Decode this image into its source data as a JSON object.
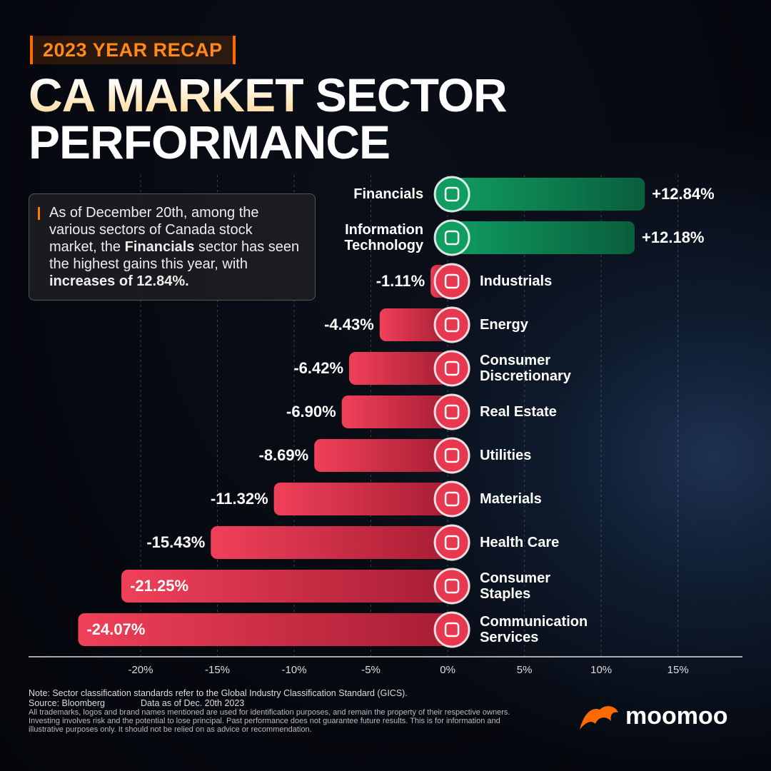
{
  "header": {
    "badge": "2023 YEAR RECAP",
    "title_highlight": "CA MARKET",
    "title_rest": "SECTOR",
    "title_line2": "PERFORMANCE"
  },
  "callout": [
    "As of December 20th, among the various sectors of Canada stock market, the ",
    "Financials",
    " sector has seen the highest gains this year, with ",
    "increases of 12.84%."
  ],
  "chart_data": {
    "type": "bar",
    "orientation": "horizontal",
    "categories": [
      "Financials",
      "Information Technology",
      "Industrials",
      "Energy",
      "Consumer Discretionary",
      "Real Estate",
      "Utilities",
      "Materials",
      "Health Care",
      "Consumer Staples",
      "Communication Services"
    ],
    "values": [
      12.84,
      12.18,
      -1.11,
      -4.43,
      -6.42,
      -6.9,
      -8.69,
      -11.32,
      -15.43,
      -21.25,
      -24.07
    ],
    "value_labels": [
      "+12.84%",
      "+12.18%",
      "-1.11%",
      "-4.43%",
      "-6.42%",
      "-6.90%",
      "-8.69%",
      "-11.32%",
      "-15.43%",
      "-21.25%",
      "-24.07%"
    ],
    "positive_color": "#0f9d62",
    "negative_color": "#e8384f",
    "xlim": [
      -27.3,
      19.2
    ],
    "xticks": [
      {
        "value": -20,
        "label": "-20%"
      },
      {
        "value": -15,
        "label": "-15%"
      },
      {
        "value": -10,
        "label": "-10%"
      },
      {
        "value": -5,
        "label": "-5%"
      },
      {
        "value": 0,
        "label": "0%"
      },
      {
        "value": 5,
        "label": "5%"
      },
      {
        "value": 10,
        "label": "10%"
      },
      {
        "value": 15,
        "label": "15%"
      }
    ],
    "grid": true
  },
  "footer": {
    "note": "Note: Sector classification standards refer to the Global Industry Classification Standard (GICS).",
    "source": "Source: Bloomberg",
    "data_date": "Data as of Dec. 20th 2023",
    "disclaimer": "All trademarks, logos and brand names mentioned are used for identification purposes, and remain the property of their respective owners. Investing involves risk and the potential to lose principal. Past performance does not guarantee future results. This is for information and illustrative purposes only. It should not be relied on as advice or recommendation.",
    "brand": "moomoo"
  }
}
